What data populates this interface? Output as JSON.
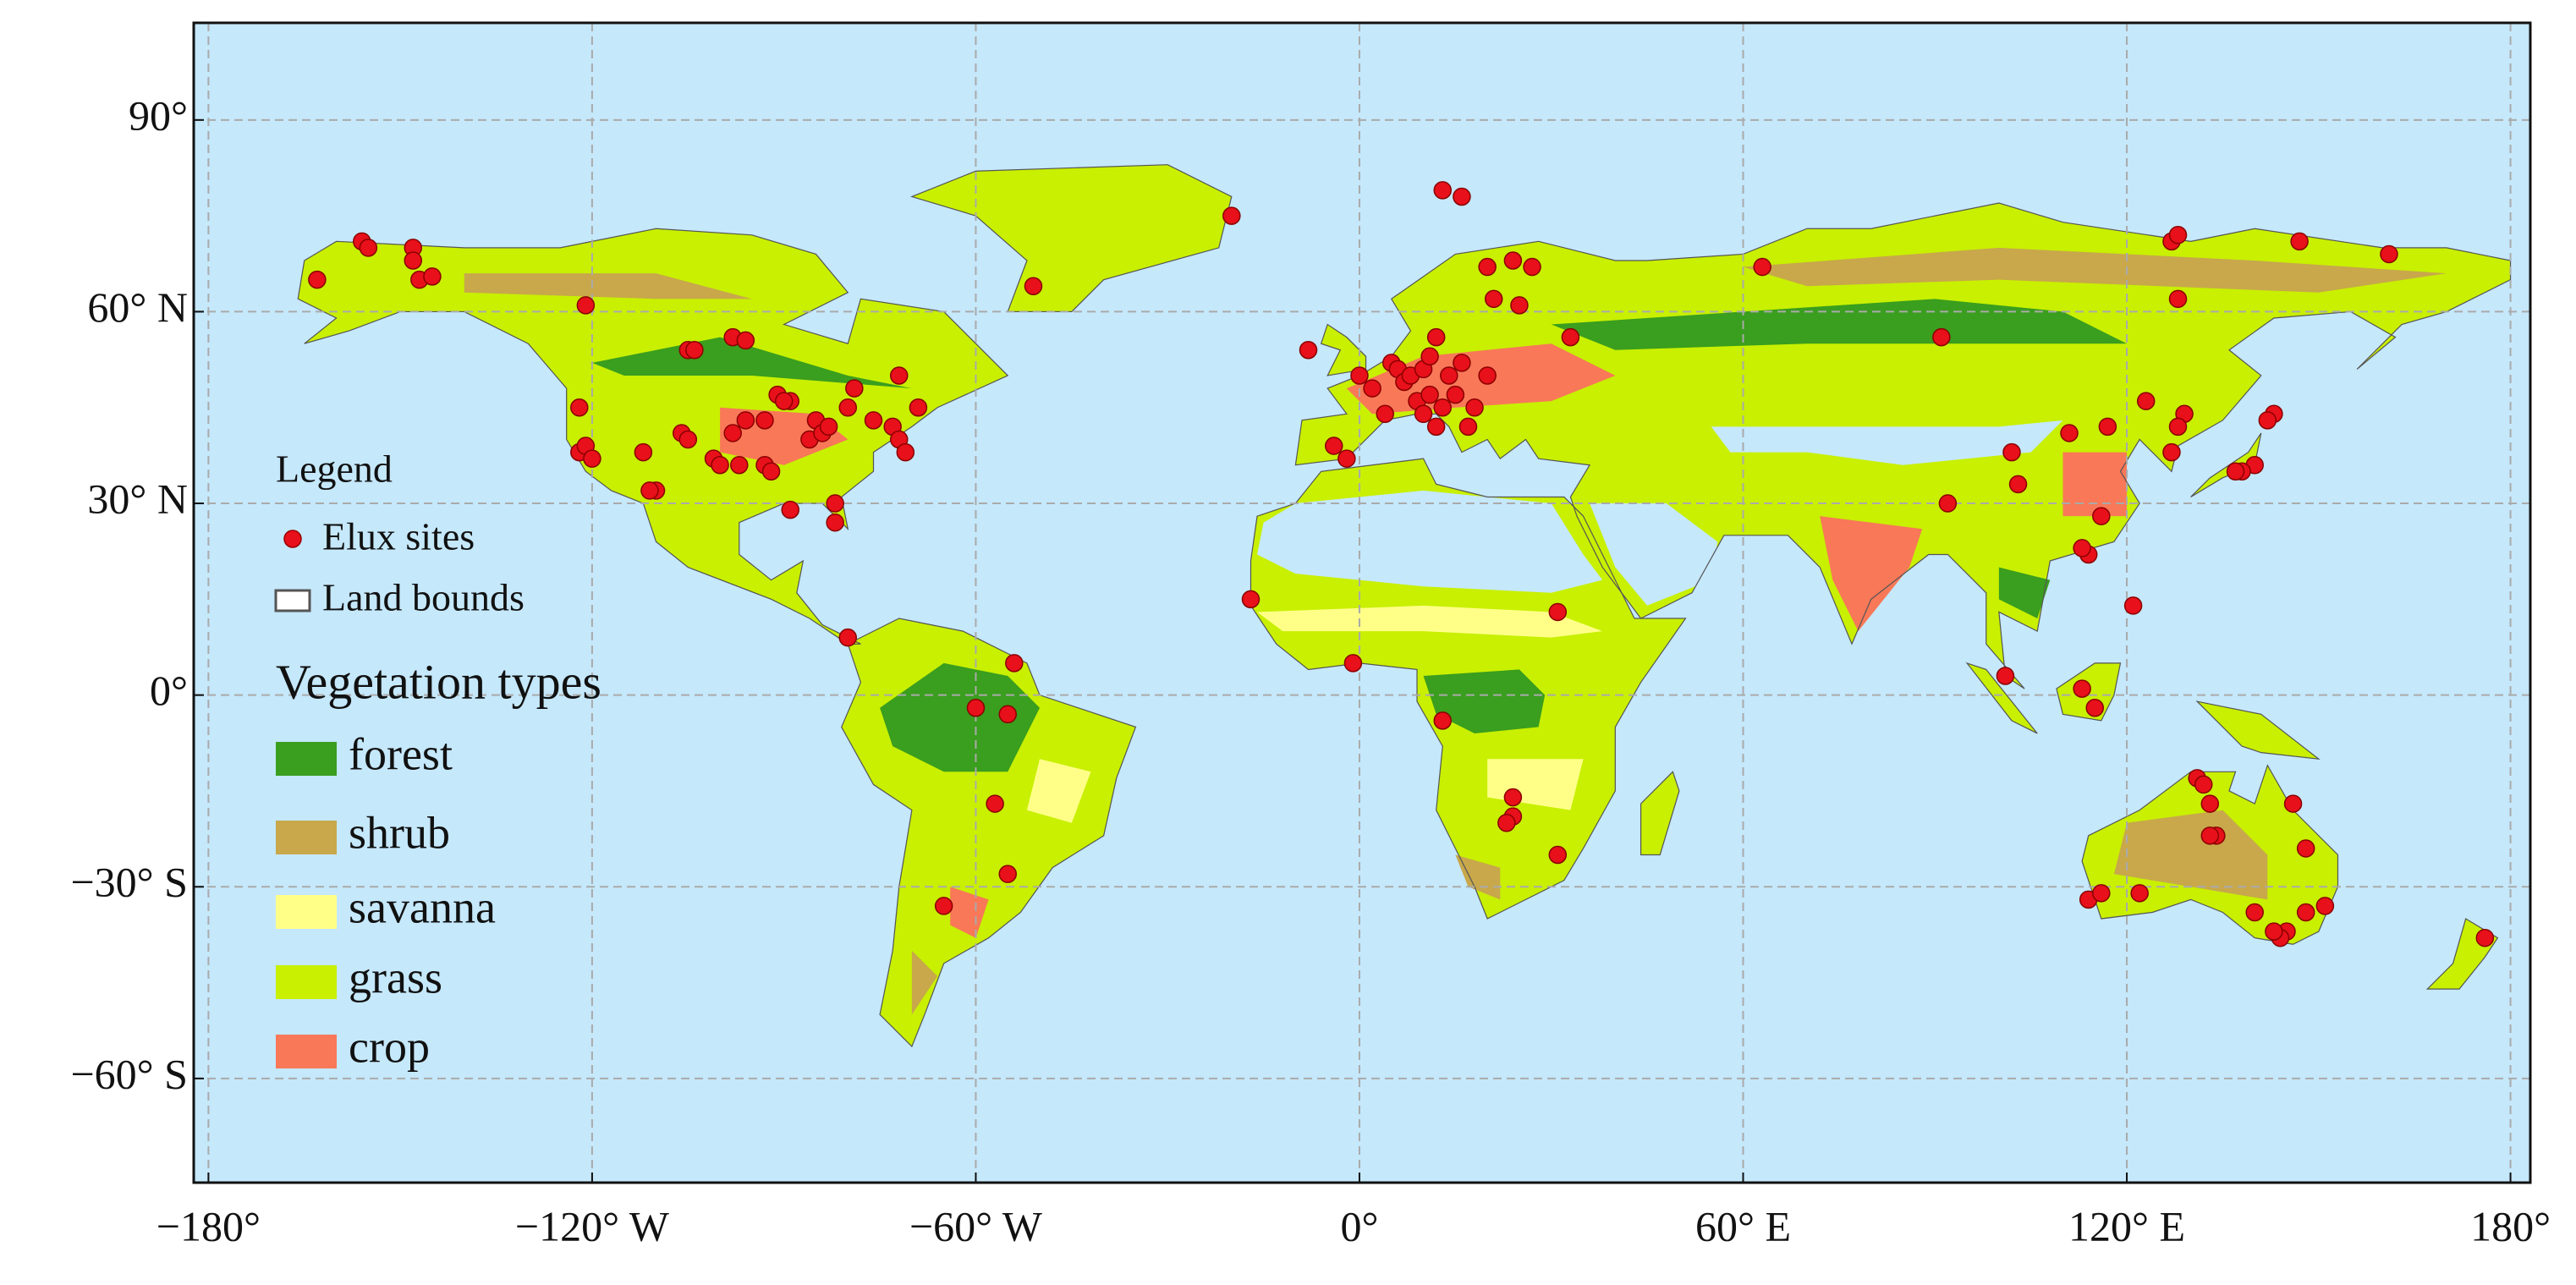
{
  "map": {
    "type": "scatter",
    "xlim": [
      -182.3,
      183.1
    ],
    "ylim": [
      -76.3,
      105.2
    ],
    "xticks": [
      {
        "value": -180,
        "label": "−180°"
      },
      {
        "value": -120,
        "label": "−120° W"
      },
      {
        "value": -60,
        "label": "−60° W"
      },
      {
        "value": 0,
        "label": "0°"
      },
      {
        "value": 60,
        "label": "60° E"
      },
      {
        "value": 120,
        "label": "120° E"
      },
      {
        "value": 180,
        "label": "180°"
      }
    ],
    "yticks": [
      {
        "value": 90,
        "label": "90°"
      },
      {
        "value": 60,
        "label": "60° N"
      },
      {
        "value": 30,
        "label": "30° N"
      },
      {
        "value": 0,
        "label": "0°"
      },
      {
        "value": -30,
        "label": "−30° S"
      },
      {
        "value": -60,
        "label": "−60° S"
      }
    ],
    "grid": true,
    "legend": {
      "title": "Legend",
      "sites": "Elux sites",
      "bounds": "Land bounds"
    },
    "vegetation": {
      "title": "Vegetation types",
      "types": [
        {
          "name": "forest",
          "color": "#3a9e1e"
        },
        {
          "name": "shrub",
          "color": "#c8a84b"
        },
        {
          "name": "savanna",
          "color": "#ffff88"
        },
        {
          "name": "grass",
          "color": "#c8f000"
        },
        {
          "name": "crop",
          "color": "#f87858"
        }
      ]
    },
    "sites": {
      "color": "#e8101a",
      "lon": [
        -163,
        -156,
        -155,
        -148,
        -148,
        -147,
        -145,
        -121,
        -105,
        -104,
        -98,
        -96,
        -122,
        -122,
        -121,
        -120,
        -110,
        -111,
        -112,
        -106,
        -105,
        -101,
        -100,
        -97,
        -93,
        -92,
        -98,
        -96,
        -91,
        -89,
        -90,
        -85,
        -86,
        -84,
        -83,
        -80,
        -79,
        -76,
        -73,
        -72,
        -72,
        -71,
        -69,
        -82,
        -82,
        -80,
        -89,
        -93,
        -20,
        -51,
        -8,
        -4,
        -2,
        0,
        2,
        4,
        5,
        6,
        7,
        8,
        9,
        10,
        11,
        11,
        12,
        13,
        14,
        15,
        16,
        17,
        12,
        10,
        18,
        20,
        21,
        24,
        25,
        27,
        20,
        13,
        16,
        33,
        63,
        -17,
        -1,
        31,
        13,
        24,
        24,
        23,
        31,
        -54,
        -55,
        -57,
        -55,
        -65,
        -60,
        91,
        102,
        103,
        92,
        111,
        117,
        123,
        129,
        128,
        127,
        127,
        128,
        128,
        147,
        161,
        143,
        142,
        140,
        138,
        137,
        116,
        114,
        113,
        121,
        101,
        113,
        115,
        131,
        132,
        133,
        134,
        133,
        146,
        148,
        148,
        145,
        144,
        143,
        140,
        114,
        116,
        122,
        151,
        176
      ],
      "lat": [
        65,
        71,
        70,
        70,
        68,
        65,
        65.5,
        61,
        54,
        54,
        56,
        55.5,
        45,
        38,
        39,
        37,
        32,
        32,
        38,
        41,
        40,
        37,
        36,
        36,
        36,
        35,
        41,
        43,
        47,
        46,
        46,
        43,
        40,
        41,
        42,
        45,
        48,
        43,
        42,
        40,
        50,
        38,
        45,
        30,
        27,
        9,
        29,
        43,
        75,
        64,
        54,
        39,
        37,
        50,
        48,
        44,
        52,
        51,
        49,
        50,
        46,
        51,
        47,
        53,
        56,
        45,
        50,
        47,
        52,
        42,
        42,
        44,
        45,
        50,
        62,
        68,
        61,
        67,
        67,
        79,
        78,
        56,
        67,
        15,
        5,
        13,
        -4,
        -16,
        -19,
        -20,
        -25,
        5,
        -3,
        -17,
        -28,
        -33,
        -2,
        56,
        38,
        33,
        30,
        41,
        42,
        46,
        44,
        42,
        38,
        71,
        72,
        62,
        71,
        69,
        44,
        43,
        36,
        35,
        35,
        28,
        22,
        23,
        14,
        3,
        1,
        -2,
        -13,
        -14,
        -17,
        -22,
        -22,
        -17,
        -24,
        -34,
        -37,
        -38,
        -37,
        -34,
        -32,
        -31,
        -31,
        -33,
        -38
      ]
    }
  }
}
